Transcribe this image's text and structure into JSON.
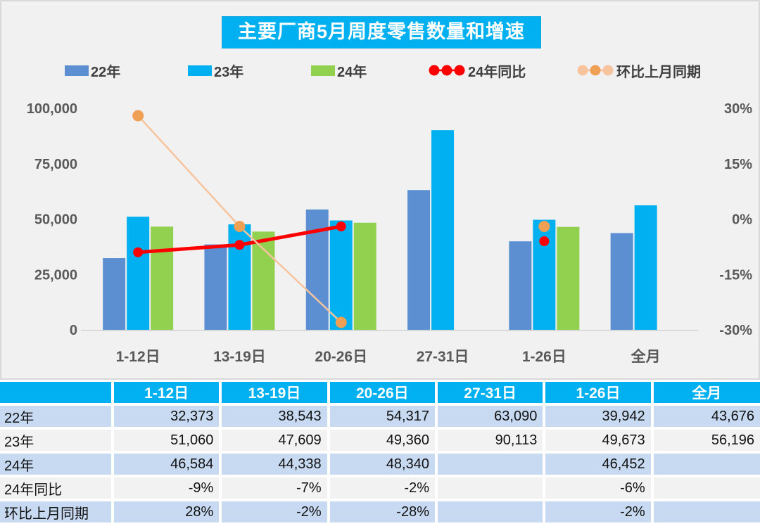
{
  "title": "主要厂商5月周度零售数量和增速",
  "legend": [
    {
      "label": "22年",
      "type": "swatch",
      "color": "#5B8FD2"
    },
    {
      "label": "23年",
      "type": "swatch",
      "color": "#00B0F0"
    },
    {
      "label": "24年",
      "type": "swatch",
      "color": "#92D050"
    },
    {
      "label": "24年同比",
      "type": "line",
      "marker_color": "#FF0000",
      "line_color": "#FF0000"
    },
    {
      "label": "环比上月同期",
      "type": "line",
      "marker_color": "#F0A055",
      "line_color": "#F7C49E"
    }
  ],
  "chart_data": {
    "type": "bar",
    "title": "主要厂商5月周度零售数量和增速",
    "categories": [
      "1-12日",
      "13-19日",
      "20-26日",
      "27-31日",
      "1-26日",
      "全月"
    ],
    "bar_series": [
      {
        "name": "22年",
        "color": "#5B8FD2",
        "values": [
          32373,
          38543,
          54317,
          63090,
          39942,
          43676
        ]
      },
      {
        "name": "23年",
        "color": "#00B0F0",
        "values": [
          51060,
          47609,
          49360,
          90113,
          49673,
          56196
        ]
      },
      {
        "name": "24年",
        "color": "#92D050",
        "values": [
          46584,
          44338,
          48340,
          null,
          46452,
          null
        ]
      }
    ],
    "line_series": [
      {
        "name": "24年同比",
        "marker_color": "#FF0000",
        "line_color": "#FF0000",
        "line_width": 5,
        "marker_radius": 7,
        "values": [
          -9,
          -7,
          -2,
          null,
          -6,
          null
        ]
      },
      {
        "name": "环比上月同期",
        "marker_color": "#F0A055",
        "line_color": "#F7C49E",
        "line_width": 2.5,
        "marker_radius": 8,
        "values": [
          28,
          -2,
          -28,
          null,
          -2,
          null
        ]
      }
    ],
    "left_axis": {
      "ticks": [
        0,
        25000,
        50000,
        75000,
        100000
      ],
      "range": [
        0,
        100000
      ]
    },
    "right_axis": {
      "ticks": [
        {
          "label": "-30%",
          "value": -30
        },
        {
          "label": "-15%",
          "value": -15
        },
        {
          "label": "0%",
          "value": 0
        },
        {
          "label": "15%",
          "value": 15
        },
        {
          "label": "30%",
          "value": 30
        }
      ],
      "range": [
        -30,
        30
      ]
    },
    "grid": false,
    "legend_position": "top"
  },
  "table": {
    "header": [
      "",
      "1-12日",
      "13-19日",
      "20-26日",
      "27-31日",
      "1-26日",
      "全月"
    ],
    "rows": [
      {
        "label": "22年",
        "cells": [
          "32,373",
          "38,543",
          "54,317",
          "63,090",
          "39,942",
          "43,676"
        ]
      },
      {
        "label": "23年",
        "cells": [
          "51,060",
          "47,609",
          "49,360",
          "90,113",
          "49,673",
          "56,196"
        ]
      },
      {
        "label": "24年",
        "cells": [
          "46,584",
          "44,338",
          "48,340",
          "",
          "46,452",
          ""
        ]
      },
      {
        "label": "24年同比",
        "cells": [
          "-9%",
          "-7%",
          "-2%",
          "",
          "-6%",
          ""
        ]
      },
      {
        "label": "环比上月同期",
        "cells": [
          "28%",
          "-2%",
          "-28%",
          "",
          "-2%",
          ""
        ]
      }
    ]
  },
  "colors": {
    "chart_background": "#F1F1F2",
    "table_header_background": "#00B0F0",
    "table_row_blue": "#C7DAF1",
    "table_row_gray": "#F2F2F2",
    "axis_text": "#595959",
    "legend_text": "#3F3F3F",
    "axis_line": "#D8D8D8"
  }
}
